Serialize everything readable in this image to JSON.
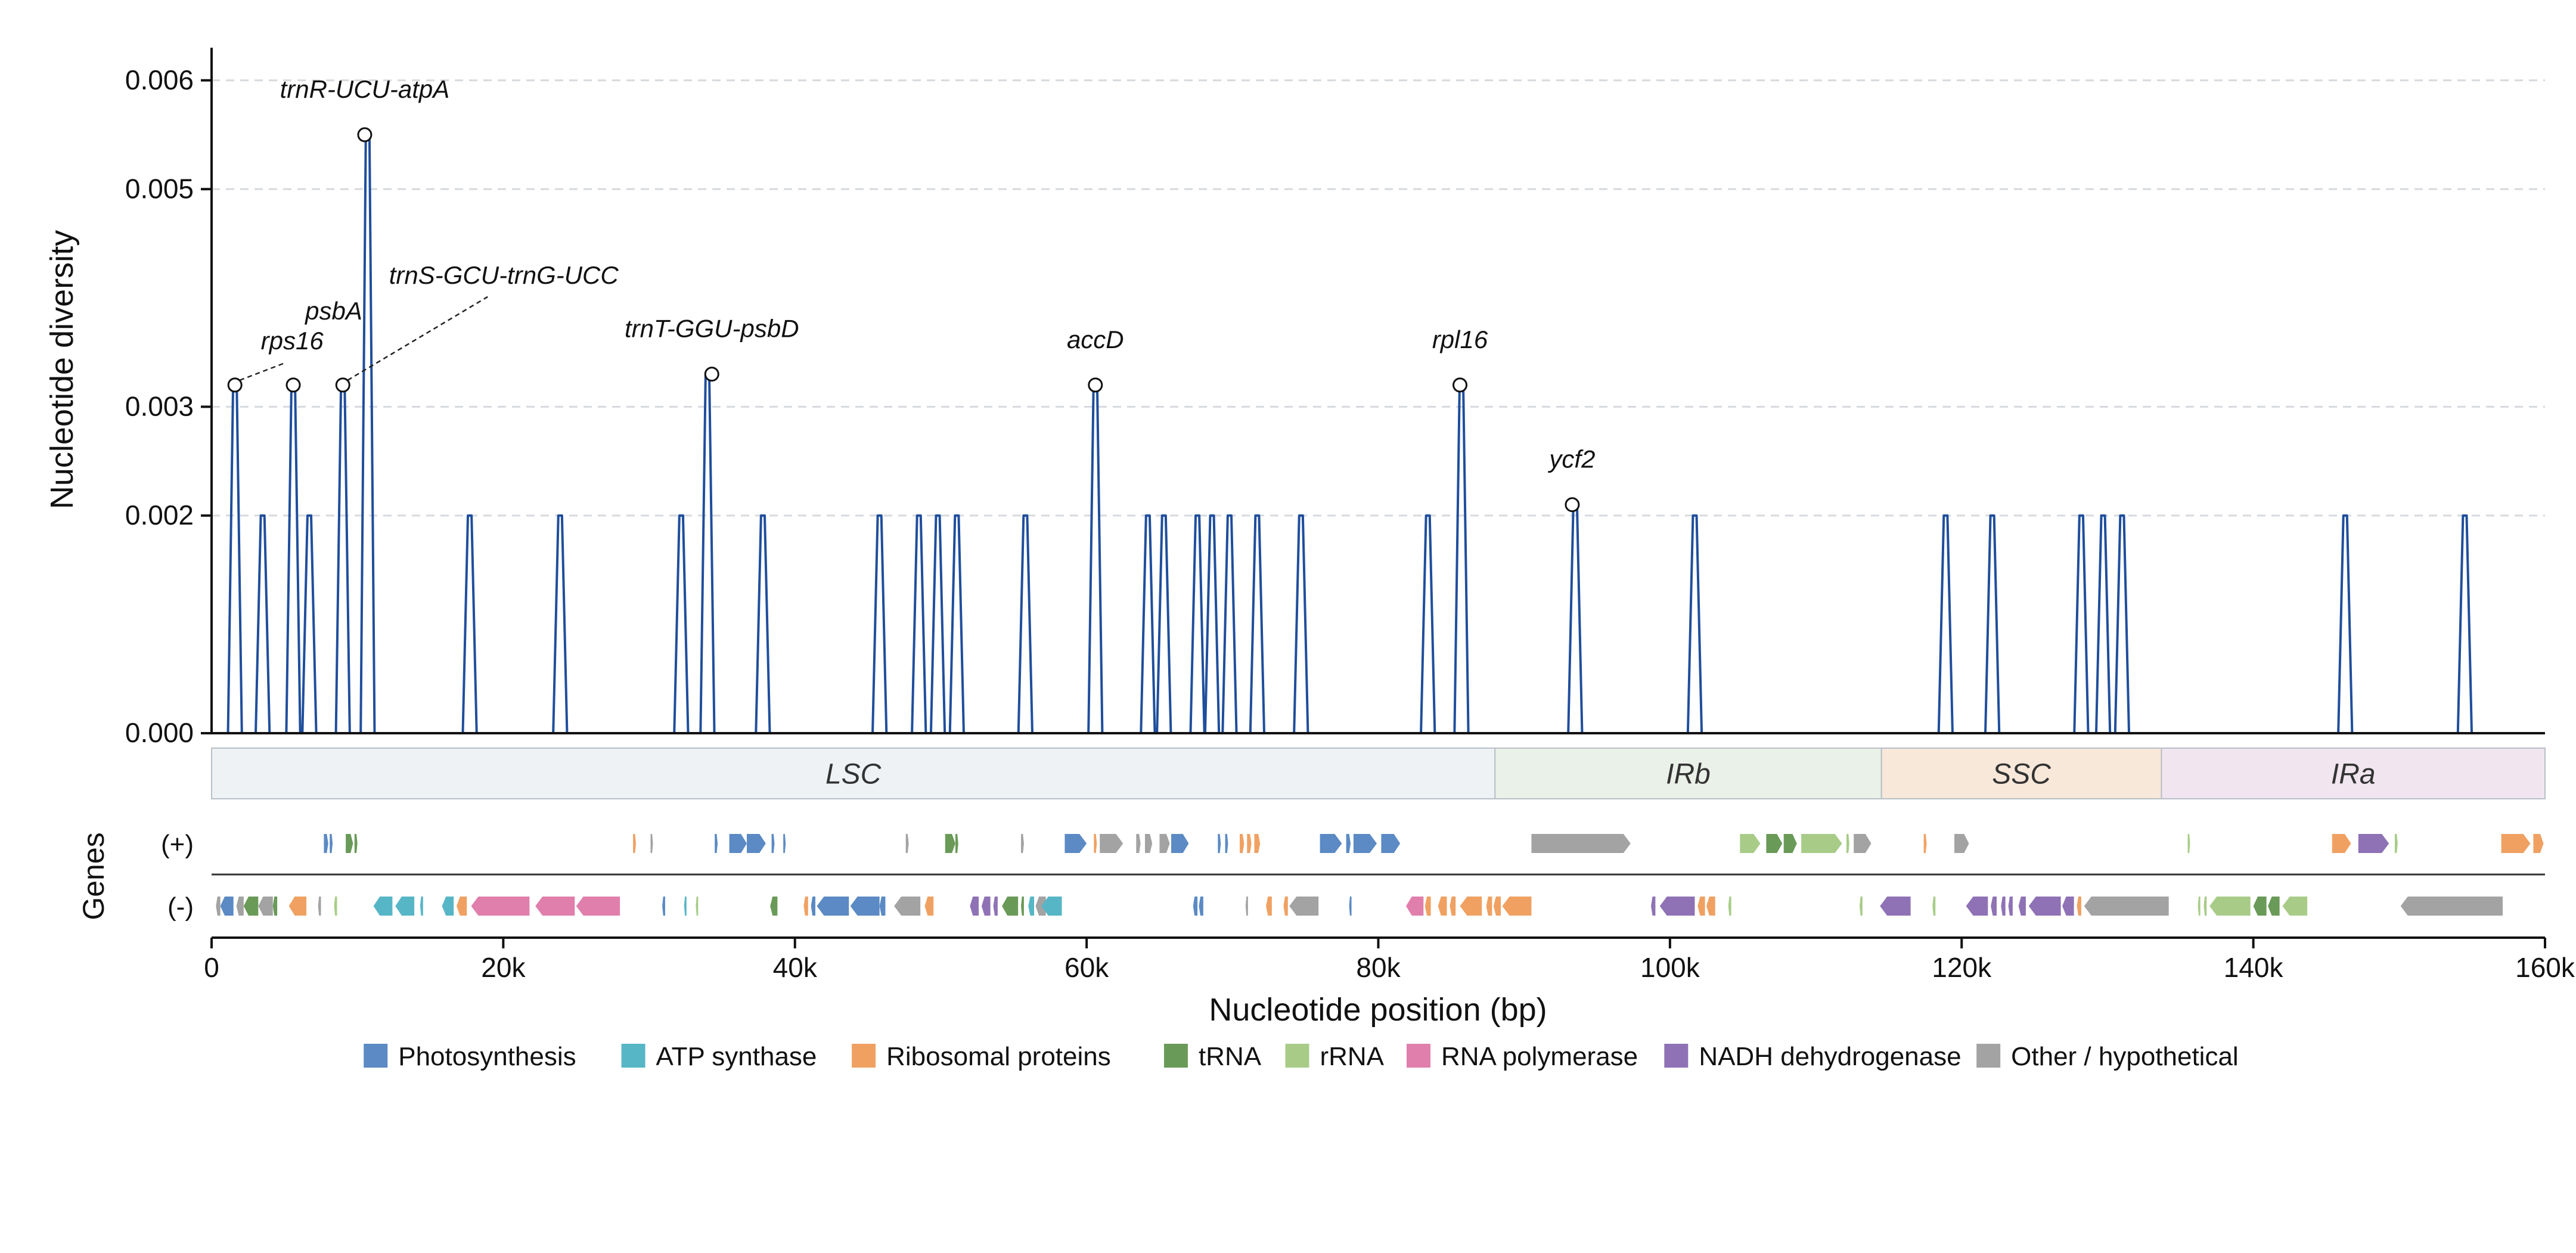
{
  "chart_data": {
    "type": "line",
    "xlabel": "Nucleotide position (bp)",
    "ylabel": "Nucleotide diversity",
    "xlim": [
      0,
      160000
    ],
    "ylim": [
      0,
      0.0063
    ],
    "x_ticks": [
      0,
      20000,
      40000,
      60000,
      80000,
      100000,
      120000,
      140000,
      160000
    ],
    "x_tick_labels": [
      "0",
      "20k",
      "40k",
      "60k",
      "80k",
      "100k",
      "120k",
      "140k",
      "160k"
    ],
    "y_ticks": [
      0.0,
      0.002,
      0.003,
      0.005,
      0.006
    ],
    "y_tick_labels": [
      "0.000",
      "0.002",
      "0.003",
      "0.005",
      "0.006"
    ],
    "grid": "horizontal dashed",
    "line_color": "#1f4e9c",
    "peaks": [
      {
        "x": 1600,
        "y": 0.0032
      },
      {
        "x": 3500,
        "y": 0.002
      },
      {
        "x": 5600,
        "y": 0.0032
      },
      {
        "x": 6700,
        "y": 0.002
      },
      {
        "x": 9000,
        "y": 0.0032
      },
      {
        "x": 10700,
        "y": 0.0055
      },
      {
        "x": 17700,
        "y": 0.002
      },
      {
        "x": 23900,
        "y": 0.002
      },
      {
        "x": 32200,
        "y": 0.002
      },
      {
        "x": 34000,
        "y": 0.0033
      },
      {
        "x": 37800,
        "y": 0.002
      },
      {
        "x": 45800,
        "y": 0.002
      },
      {
        "x": 48500,
        "y": 0.002
      },
      {
        "x": 49800,
        "y": 0.002
      },
      {
        "x": 51100,
        "y": 0.002
      },
      {
        "x": 55800,
        "y": 0.002
      },
      {
        "x": 60600,
        "y": 0.0032
      },
      {
        "x": 64200,
        "y": 0.002
      },
      {
        "x": 65300,
        "y": 0.002
      },
      {
        "x": 67600,
        "y": 0.002
      },
      {
        "x": 68600,
        "y": 0.002
      },
      {
        "x": 69800,
        "y": 0.002
      },
      {
        "x": 71700,
        "y": 0.002
      },
      {
        "x": 74700,
        "y": 0.002
      },
      {
        "x": 83400,
        "y": 0.002
      },
      {
        "x": 85700,
        "y": 0.0032
      },
      {
        "x": 93500,
        "y": 0.0021
      },
      {
        "x": 101700,
        "y": 0.002
      },
      {
        "x": 118900,
        "y": 0.002
      },
      {
        "x": 122100,
        "y": 0.002
      },
      {
        "x": 128200,
        "y": 0.002
      },
      {
        "x": 129700,
        "y": 0.002
      },
      {
        "x": 131000,
        "y": 0.002
      },
      {
        "x": 146300,
        "y": 0.002
      },
      {
        "x": 154500,
        "y": 0.002
      }
    ],
    "annotations": [
      {
        "label": "trnR-UCU-atpA",
        "x": 10500,
        "y": 0.0055
      },
      {
        "label": "rps16",
        "x": 1600,
        "y": 0.0032
      },
      {
        "label": "psbA",
        "x": 5600,
        "y": 0.0032
      },
      {
        "label": "trnS-GCU-trnG-UCC",
        "x": 9000,
        "y": 0.0032
      },
      {
        "label": "trnT-GGU-psbD",
        "x": 34300,
        "y": 0.0033
      },
      {
        "label": "accD",
        "x": 60600,
        "y": 0.0032
      },
      {
        "label": "rpl16",
        "x": 85600,
        "y": 0.0032
      },
      {
        "label": "ycf2",
        "x": 93300,
        "y": 0.0021
      }
    ],
    "regions": [
      {
        "name": "LSC",
        "start": 0,
        "end": 88000,
        "color": "#eef2f5"
      },
      {
        "name": "IRb",
        "start": 88000,
        "end": 114500,
        "color": "#eaf1e8"
      },
      {
        "name": "SSC",
        "start": 114500,
        "end": 133700,
        "color": "#f8e8da"
      },
      {
        "name": "IRa",
        "start": 133700,
        "end": 160000,
        "color": "#f1e6f0"
      }
    ],
    "genes_axis_label": "Genes",
    "strand_labels": [
      "(+)",
      "(-)"
    ],
    "legend": [
      {
        "name": "Photosynthesis",
        "color": "#5b8ac4"
      },
      {
        "name": "ATP synthase",
        "color": "#57b6c6"
      },
      {
        "name": "Ribosomal proteins",
        "color": "#f0a162"
      },
      {
        "name": "tRNA",
        "color": "#6a9a58"
      },
      {
        "name": "rRNA",
        "color": "#a8cc88"
      },
      {
        "name": "RNA polymerase",
        "color": "#e07fac"
      },
      {
        "name": "NADH dehydrogenase",
        "color": "#8f72b5"
      },
      {
        "name": "Other / hypothetical",
        "color": "#a3a3a3"
      }
    ],
    "genes_plus": [
      {
        "s": 7700,
        "e": 8000,
        "c": "Photosynthesis"
      },
      {
        "s": 8100,
        "e": 8300,
        "c": "Photosynthesis"
      },
      {
        "s": 9200,
        "e": 9700,
        "c": "tRNA"
      },
      {
        "s": 9800,
        "e": 10000,
        "c": "tRNA"
      },
      {
        "s": 28900,
        "e": 29100,
        "c": "Ribosomal proteins"
      },
      {
        "s": 30100,
        "e": 30200,
        "c": "Other / hypothetical"
      },
      {
        "s": 34500,
        "e": 34700,
        "c": "Photosynthesis"
      },
      {
        "s": 35500,
        "e": 36700,
        "c": "Photosynthesis"
      },
      {
        "s": 36700,
        "e": 38000,
        "c": "Photosynthesis"
      },
      {
        "s": 38400,
        "e": 38600,
        "c": "Photosynthesis"
      },
      {
        "s": 39200,
        "e": 39300,
        "c": "Photosynthesis"
      },
      {
        "s": 47600,
        "e": 47800,
        "c": "Other / hypothetical"
      },
      {
        "s": 50300,
        "e": 51000,
        "c": "tRNA"
      },
      {
        "s": 51000,
        "e": 51200,
        "c": "tRNA"
      },
      {
        "s": 55500,
        "e": 55700,
        "c": "Other / hypothetical"
      },
      {
        "s": 58500,
        "e": 60000,
        "c": "Photosynthesis"
      },
      {
        "s": 60500,
        "e": 60700,
        "c": "Ribosomal proteins"
      },
      {
        "s": 60900,
        "e": 62500,
        "c": "Other / hypothetical"
      },
      {
        "s": 63400,
        "e": 63700,
        "c": "Other / hypothetical"
      },
      {
        "s": 64000,
        "e": 64500,
        "c": "Other / hypothetical"
      },
      {
        "s": 65000,
        "e": 65700,
        "c": "Other / hypothetical"
      },
      {
        "s": 65800,
        "e": 67000,
        "c": "Photosynthesis"
      },
      {
        "s": 69000,
        "e": 69200,
        "c": "Photosynthesis"
      },
      {
        "s": 69500,
        "e": 69700,
        "c": "Photosynthesis"
      },
      {
        "s": 70500,
        "e": 70800,
        "c": "Ribosomal proteins"
      },
      {
        "s": 71000,
        "e": 71300,
        "c": "Ribosomal proteins"
      },
      {
        "s": 71500,
        "e": 71900,
        "c": "Ribosomal proteins"
      },
      {
        "s": 76000,
        "e": 77500,
        "c": "Photosynthesis"
      },
      {
        "s": 77800,
        "e": 78100,
        "c": "Photosynthesis"
      },
      {
        "s": 78300,
        "e": 79900,
        "c": "Photosynthesis"
      },
      {
        "s": 80200,
        "e": 81500,
        "c": "Photosynthesis"
      },
      {
        "s": 90500,
        "e": 97300,
        "c": "Other / hypothetical"
      },
      {
        "s": 104800,
        "e": 106200,
        "c": "rRNA"
      },
      {
        "s": 106600,
        "e": 107700,
        "c": "tRNA"
      },
      {
        "s": 107800,
        "e": 108700,
        "c": "tRNA"
      },
      {
        "s": 109000,
        "e": 111800,
        "c": "rRNA"
      },
      {
        "s": 112100,
        "e": 112300,
        "c": "rRNA"
      },
      {
        "s": 112600,
        "e": 113800,
        "c": "Other / hypothetical"
      },
      {
        "s": 117400,
        "e": 117600,
        "c": "Ribosomal proteins"
      },
      {
        "s": 119500,
        "e": 120500,
        "c": "Other / hypothetical"
      },
      {
        "s": 135500,
        "e": 135600,
        "c": "rRNA"
      },
      {
        "s": 145400,
        "e": 146700,
        "c": "Ribosomal proteins"
      },
      {
        "s": 147200,
        "e": 149300,
        "c": "NADH dehydrogenase"
      },
      {
        "s": 149700,
        "e": 149900,
        "c": "rRNA"
      },
      {
        "s": 157000,
        "e": 159000,
        "c": "Ribosomal proteins"
      },
      {
        "s": 159200,
        "e": 159900,
        "c": "Ribosomal proteins"
      }
    ],
    "genes_minus": [
      {
        "s": 300,
        "e": 600,
        "c": "Other / hypothetical"
      },
      {
        "s": 600,
        "e": 1500,
        "c": "Photosynthesis"
      },
      {
        "s": 1700,
        "e": 2200,
        "c": "Other / hypothetical"
      },
      {
        "s": 2200,
        "e": 3200,
        "c": "tRNA"
      },
      {
        "s": 3200,
        "e": 4200,
        "c": "Other / hypothetical"
      },
      {
        "s": 4200,
        "e": 4500,
        "c": "tRNA"
      },
      {
        "s": 5300,
        "e": 6500,
        "c": "Ribosomal proteins"
      },
      {
        "s": 7300,
        "e": 7500,
        "c": "Other / hypothetical"
      },
      {
        "s": 8400,
        "e": 8600,
        "c": "rRNA"
      },
      {
        "s": 11100,
        "e": 12400,
        "c": "ATP synthase"
      },
      {
        "s": 12600,
        "e": 13900,
        "c": "ATP synthase"
      },
      {
        "s": 14300,
        "e": 14500,
        "c": "ATP synthase"
      },
      {
        "s": 15800,
        "e": 16600,
        "c": "ATP synthase"
      },
      {
        "s": 16800,
        "e": 17500,
        "c": "Ribosomal proteins"
      },
      {
        "s": 17800,
        "e": 21800,
        "c": "RNA polymerase"
      },
      {
        "s": 22200,
        "e": 24900,
        "c": "RNA polymerase"
      },
      {
        "s": 25000,
        "e": 28000,
        "c": "RNA polymerase"
      },
      {
        "s": 30900,
        "e": 31100,
        "c": "Photosynthesis"
      },
      {
        "s": 32400,
        "e": 32500,
        "c": "ATP synthase"
      },
      {
        "s": 33200,
        "e": 33300,
        "c": "rRNA"
      },
      {
        "s": 38300,
        "e": 38800,
        "c": "tRNA"
      },
      {
        "s": 40600,
        "e": 40900,
        "c": "Ribosomal proteins"
      },
      {
        "s": 41100,
        "e": 41400,
        "c": "Photosynthesis"
      },
      {
        "s": 41500,
        "e": 43700,
        "c": "Photosynthesis"
      },
      {
        "s": 43800,
        "e": 45800,
        "c": "Photosynthesis"
      },
      {
        "s": 45800,
        "e": 46200,
        "c": "Photosynthesis"
      },
      {
        "s": 46800,
        "e": 48600,
        "c": "Other / hypothetical"
      },
      {
        "s": 48900,
        "e": 49500,
        "c": "Ribosomal proteins"
      },
      {
        "s": 52000,
        "e": 52600,
        "c": "NADH dehydrogenase"
      },
      {
        "s": 52800,
        "e": 53400,
        "c": "NADH dehydrogenase"
      },
      {
        "s": 53600,
        "e": 53900,
        "c": "NADH dehydrogenase"
      },
      {
        "s": 54200,
        "e": 55300,
        "c": "tRNA"
      },
      {
        "s": 55500,
        "e": 55700,
        "c": "tRNA"
      },
      {
        "s": 56000,
        "e": 56400,
        "c": "ATP synthase"
      },
      {
        "s": 56500,
        "e": 57200,
        "c": "Other / hypothetical"
      },
      {
        "s": 56900,
        "e": 58300,
        "c": "ATP synthase"
      },
      {
        "s": 67300,
        "e": 67600,
        "c": "Photosynthesis"
      },
      {
        "s": 67700,
        "e": 68000,
        "c": "Photosynthesis"
      },
      {
        "s": 70900,
        "e": 71000,
        "c": "Other / hypothetical"
      },
      {
        "s": 72300,
        "e": 72700,
        "c": "Ribosomal proteins"
      },
      {
        "s": 73500,
        "e": 73800,
        "c": "Ribosomal proteins"
      },
      {
        "s": 73900,
        "e": 75900,
        "c": "Other / hypothetical"
      },
      {
        "s": 78000,
        "e": 78100,
        "c": "Photosynthesis"
      },
      {
        "s": 81900,
        "e": 83100,
        "c": "RNA polymerase"
      },
      {
        "s": 83200,
        "e": 83600,
        "c": "Ribosomal proteins"
      },
      {
        "s": 84100,
        "e": 84700,
        "c": "Ribosomal proteins"
      },
      {
        "s": 84900,
        "e": 85300,
        "c": "Ribosomal proteins"
      },
      {
        "s": 85600,
        "e": 87100,
        "c": "Ribosomal proteins"
      },
      {
        "s": 87400,
        "e": 87800,
        "c": "Ribosomal proteins"
      },
      {
        "s": 87900,
        "e": 88400,
        "c": "Ribosomal proteins"
      },
      {
        "s": 88500,
        "e": 90500,
        "c": "Ribosomal proteins"
      },
      {
        "s": 98700,
        "e": 99000,
        "c": "NADH dehydrogenase"
      },
      {
        "s": 99300,
        "e": 101700,
        "c": "NADH dehydrogenase"
      },
      {
        "s": 101900,
        "e": 102400,
        "c": "Ribosomal proteins"
      },
      {
        "s": 102500,
        "e": 103100,
        "c": "Ribosomal proteins"
      },
      {
        "s": 104000,
        "e": 104200,
        "c": "rRNA"
      },
      {
        "s": 113000,
        "e": 113200,
        "c": "rRNA"
      },
      {
        "s": 114400,
        "e": 116500,
        "c": "NADH dehydrogenase"
      },
      {
        "s": 118000,
        "e": 118200,
        "c": "rRNA"
      },
      {
        "s": 120300,
        "e": 121800,
        "c": "NADH dehydrogenase"
      },
      {
        "s": 122000,
        "e": 122400,
        "c": "NADH dehydrogenase"
      },
      {
        "s": 122700,
        "e": 123000,
        "c": "NADH dehydrogenase"
      },
      {
        "s": 123200,
        "e": 123500,
        "c": "NADH dehydrogenase"
      },
      {
        "s": 123900,
        "e": 124400,
        "c": "NADH dehydrogenase"
      },
      {
        "s": 124600,
        "e": 126800,
        "c": "NADH dehydrogenase"
      },
      {
        "s": 126900,
        "e": 127700,
        "c": "NADH dehydrogenase"
      },
      {
        "s": 127900,
        "e": 128200,
        "c": "Ribosomal proteins"
      },
      {
        "s": 128400,
        "e": 134200,
        "c": "Other / hypothetical"
      },
      {
        "s": 136200,
        "e": 136300,
        "c": "rRNA"
      },
      {
        "s": 136600,
        "e": 136800,
        "c": "rRNA"
      },
      {
        "s": 137000,
        "e": 139800,
        "c": "rRNA"
      },
      {
        "s": 140000,
        "e": 140900,
        "c": "tRNA"
      },
      {
        "s": 141000,
        "e": 141800,
        "c": "tRNA"
      },
      {
        "s": 142000,
        "e": 143700,
        "c": "rRNA"
      },
      {
        "s": 150100,
        "e": 157100,
        "c": "Other / hypothetical"
      }
    ]
  }
}
